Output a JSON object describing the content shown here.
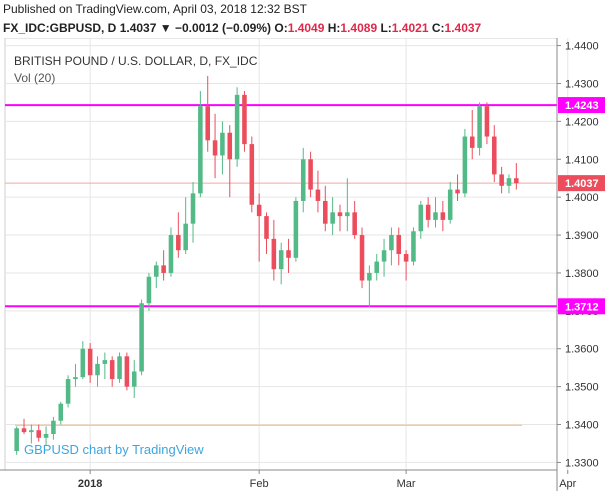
{
  "header": {
    "published": "Published on TradingView.com, April 03, 2018 12:32 BST",
    "symbol": "FX_IDC:GBPUSD, D",
    "last": "1.4037",
    "change": "▼ −0.0012 (−0.09%)",
    "o_label": "O:",
    "o_value": "1.4049",
    "h_label": "H:",
    "h_value": "1.4089",
    "l_label": "L:",
    "l_value": "1.4021",
    "c_label": "C:",
    "c_value": "1.4037"
  },
  "legend": {
    "title": "BRITISH POUND / U.S. DOLLAR, D, FX_IDC",
    "volume": "Vol (20)"
  },
  "watermark": "GBPUSD chart by TradingView",
  "colors": {
    "up": "#53b987",
    "down": "#eb4d5c",
    "hline": "#ff00ff",
    "price_line": "#f2a6a6",
    "volume_line": "#f5c9a5",
    "grid": "#e6e6e6",
    "watermark": "#3ba6e0"
  },
  "chart_data": {
    "type": "candlestick",
    "y_ticks": [
      "1.4400",
      "1.4300",
      "1.4200",
      "1.4100",
      "1.4000",
      "1.3900",
      "1.3800",
      "1.3700",
      "1.3600",
      "1.3500",
      "1.3400",
      "1.3300"
    ],
    "x_ticks": [
      {
        "label": "2018",
        "index": 10
      },
      {
        "label": "Feb",
        "index": 33
      },
      {
        "label": "Mar",
        "index": 53
      },
      {
        "label": "Apr",
        "index": 75
      }
    ],
    "ylim": [
      1.328,
      1.442
    ],
    "horizontal_levels": [
      {
        "label": "1.4243",
        "value": 1.4243
      },
      {
        "label": "1.3712",
        "value": 1.3712
      }
    ],
    "current_price": {
      "label": "1.4037",
      "value": 1.4037
    },
    "candles": [
      [
        1.333,
        1.3395,
        1.332,
        1.339
      ],
      [
        1.339,
        1.3415,
        1.3375,
        1.338
      ],
      [
        1.338,
        1.34,
        1.335,
        1.3385
      ],
      [
        1.3385,
        1.34,
        1.3355,
        1.3365
      ],
      [
        1.3365,
        1.3395,
        1.3345,
        1.3375
      ],
      [
        1.3375,
        1.342,
        1.336,
        1.341
      ],
      [
        1.341,
        1.346,
        1.34,
        1.3455
      ],
      [
        1.3455,
        1.353,
        1.3445,
        1.352
      ],
      [
        1.352,
        1.356,
        1.35,
        1.3525
      ],
      [
        1.3525,
        1.362,
        1.352,
        1.36
      ],
      [
        1.36,
        1.3615,
        1.351,
        1.353
      ],
      [
        1.353,
        1.358,
        1.35,
        1.356
      ],
      [
        1.356,
        1.359,
        1.352,
        1.357
      ],
      [
        1.357,
        1.358,
        1.35,
        1.352
      ],
      [
        1.352,
        1.359,
        1.351,
        1.358
      ],
      [
        1.358,
        1.359,
        1.349,
        1.35
      ],
      [
        1.35,
        1.357,
        1.347,
        1.354
      ],
      [
        1.354,
        1.373,
        1.353,
        1.372
      ],
      [
        1.372,
        1.38,
        1.37,
        1.379
      ],
      [
        1.379,
        1.383,
        1.376,
        1.382
      ],
      [
        1.382,
        1.386,
        1.378,
        1.38
      ],
      [
        1.38,
        1.392,
        1.379,
        1.39
      ],
      [
        1.39,
        1.396,
        1.384,
        1.386
      ],
      [
        1.386,
        1.4,
        1.385,
        1.393
      ],
      [
        1.393,
        1.404,
        1.388,
        1.401
      ],
      [
        1.401,
        1.428,
        1.4,
        1.424
      ],
      [
        1.424,
        1.432,
        1.412,
        1.415
      ],
      [
        1.415,
        1.422,
        1.405,
        1.411
      ],
      [
        1.411,
        1.42,
        1.406,
        1.417
      ],
      [
        1.417,
        1.419,
        1.4,
        1.41
      ],
      [
        1.41,
        1.429,
        1.408,
        1.427
      ],
      [
        1.427,
        1.428,
        1.412,
        1.414
      ],
      [
        1.414,
        1.416,
        1.396,
        1.398
      ],
      [
        1.398,
        1.401,
        1.383,
        1.395
      ],
      [
        1.395,
        1.396,
        1.385,
        1.389
      ],
      [
        1.389,
        1.394,
        1.378,
        1.381
      ],
      [
        1.381,
        1.388,
        1.377,
        1.386
      ],
      [
        1.386,
        1.389,
        1.38,
        1.384
      ],
      [
        1.384,
        1.4,
        1.383,
        1.399
      ],
      [
        1.399,
        1.413,
        1.396,
        1.41
      ],
      [
        1.41,
        1.412,
        1.4,
        1.402
      ],
      [
        1.402,
        1.407,
        1.396,
        1.399
      ],
      [
        1.399,
        1.403,
        1.391,
        1.393
      ],
      [
        1.393,
        1.4,
        1.39,
        1.396
      ],
      [
        1.396,
        1.398,
        1.391,
        1.395
      ],
      [
        1.395,
        1.405,
        1.391,
        1.396
      ],
      [
        1.396,
        1.399,
        1.389,
        1.39
      ],
      [
        1.39,
        1.392,
        1.376,
        1.378
      ],
      [
        1.378,
        1.382,
        1.371,
        1.38
      ],
      [
        1.38,
        1.385,
        1.378,
        1.383
      ],
      [
        1.383,
        1.389,
        1.379,
        1.386
      ],
      [
        1.386,
        1.392,
        1.382,
        1.39
      ],
      [
        1.39,
        1.392,
        1.382,
        1.385
      ],
      [
        1.385,
        1.386,
        1.378,
        1.383
      ],
      [
        1.383,
        1.392,
        1.382,
        1.391
      ],
      [
        1.391,
        1.399,
        1.389,
        1.398
      ],
      [
        1.398,
        1.4,
        1.392,
        1.394
      ],
      [
        1.394,
        1.4,
        1.392,
        1.396
      ],
      [
        1.396,
        1.399,
        1.391,
        1.394
      ],
      [
        1.394,
        1.404,
        1.393,
        1.402
      ],
      [
        1.402,
        1.406,
        1.399,
        1.401
      ],
      [
        1.401,
        1.418,
        1.4,
        1.416
      ],
      [
        1.416,
        1.423,
        1.41,
        1.413
      ],
      [
        1.413,
        1.425,
        1.411,
        1.424
      ],
      [
        1.424,
        1.425,
        1.414,
        1.416
      ],
      [
        1.416,
        1.419,
        1.404,
        1.406
      ],
      [
        1.406,
        1.408,
        1.401,
        1.403
      ],
      [
        1.403,
        1.406,
        1.401,
        1.405
      ],
      [
        1.405,
        1.409,
        1.402,
        1.4037
      ]
    ]
  }
}
